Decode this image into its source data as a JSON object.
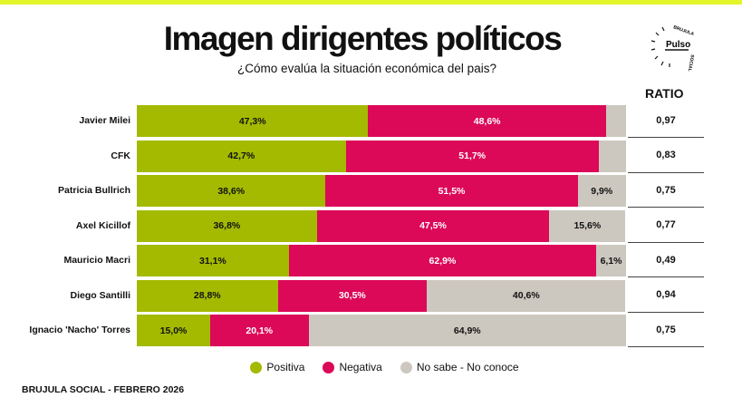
{
  "title": "Imagen dirigentes políticos",
  "subtitle": "¿Cómo evalúa la situación económica del pais?",
  "logo": {
    "text": "Pulso",
    "ring_text": "BRUJULA SOCIAL"
  },
  "ratio_header": "RATIO",
  "footer": "BRUJULA SOCIAL - FEBRERO 2026",
  "chart_data": {
    "type": "bar",
    "stacked": true,
    "orientation": "horizontal",
    "title": "Imagen dirigentes políticos",
    "categories": [
      "Javier Milei",
      "CFK",
      "Patricia Bullrich",
      "Axel Kicillof",
      "Mauricio Macri",
      "Diego Santilli",
      "Ignacio 'Nacho' Torres"
    ],
    "series": [
      {
        "name": "Positiva",
        "color": "#a3ba00",
        "values": [
          47.3,
          42.7,
          38.6,
          36.8,
          31.1,
          28.8,
          15.0
        ],
        "labels": [
          "47,3%",
          "42,7%",
          "38,6%",
          "36,8%",
          "31,1%",
          "28,8%",
          "15,0%"
        ]
      },
      {
        "name": "Negativa",
        "color": "#dc0858",
        "values": [
          48.6,
          51.7,
          51.5,
          47.5,
          62.9,
          30.5,
          20.1
        ],
        "labels": [
          "48,6%",
          "51,7%",
          "51,5%",
          "47,5%",
          "62,9%",
          "30,5%",
          "20,1%"
        ]
      },
      {
        "name": "No sabe - No conoce",
        "color": "#cdc8bf",
        "values": [
          4.1,
          5.6,
          9.9,
          15.6,
          6.1,
          40.6,
          64.9
        ],
        "labels": [
          "",
          "",
          "9,9%",
          "15,6%",
          "6,1%",
          "40,6%",
          "64,9%"
        ]
      }
    ],
    "ratio": [
      "0,97",
      "0,83",
      "0,75",
      "0,77",
      "0,49",
      "0,94",
      "0,75"
    ],
    "xlim": [
      0,
      100
    ],
    "legend": "bottom"
  }
}
